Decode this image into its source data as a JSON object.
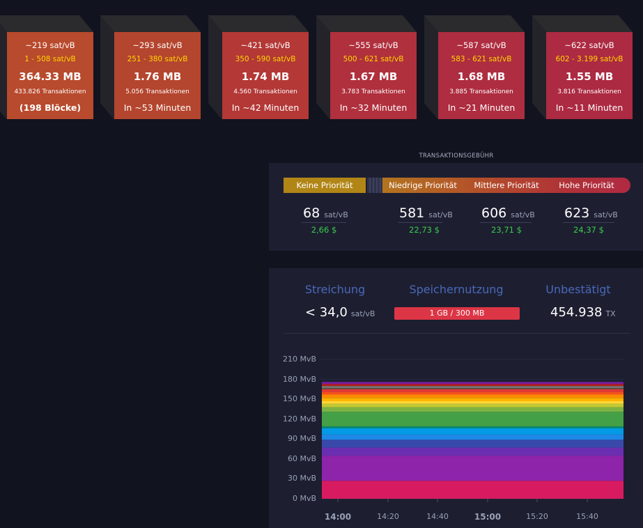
{
  "blocks": [
    {
      "fee": "~219 sat/vB",
      "range": "1 - 508 sat/vB",
      "size": "364.33 MB",
      "tx": "433.826 Transaktionen",
      "time": "(198 Blöcke)",
      "time_bold": true,
      "color": "#b84a2d"
    },
    {
      "fee": "~293 sat/vB",
      "range": "251 - 380 sat/vB",
      "size": "1.76 MB",
      "tx": "5.056 Transaktionen",
      "time": "In ~53 Minuten",
      "time_bold": false,
      "color": "#b4452e"
    },
    {
      "fee": "~421 sat/vB",
      "range": "350 - 590 sat/vB",
      "size": "1.74 MB",
      "tx": "4.560 Transaktionen",
      "time": "In ~42 Minuten",
      "time_bold": false,
      "color": "#b33836"
    },
    {
      "fee": "~555 sat/vB",
      "range": "500 - 621 sat/vB",
      "size": "1.67 MB",
      "tx": "3.783 Transaktionen",
      "time": "In ~32 Minuten",
      "time_bold": false,
      "color": "#b0303d"
    },
    {
      "fee": "~587 sat/vB",
      "range": "583 - 621 sat/vB",
      "size": "1.68 MB",
      "tx": "3.885 Transaktionen",
      "time": "In ~21 Minuten",
      "time_bold": false,
      "color": "#ae2d40"
    },
    {
      "fee": "~622 sat/vB",
      "range": "602 - 3.199 sat/vB",
      "size": "1.55 MB",
      "tx": "3.816 Transaktionen",
      "time": "In ~11 Minuten",
      "time_bold": false,
      "color": "#ac2a42"
    }
  ],
  "fees": {
    "title": "TRANSAKTIONSGEBÜHR",
    "labels": {
      "none": "Keine Priorität",
      "low": "Niedrige Priorität",
      "medium": "Mittlere Priorität",
      "high": "Hohe Priorität"
    },
    "unit": "sat/vB",
    "values": {
      "none": "68",
      "low": "581",
      "medium": "606",
      "high": "623"
    },
    "usd": {
      "none": "2,66 $",
      "low": "22,73 $",
      "medium": "23,71 $",
      "high": "24,37 $"
    }
  },
  "stats": {
    "purging": {
      "title": "Streichung",
      "value": "< 34,0",
      "unit": "sat/vB"
    },
    "memory": {
      "title": "Speichernutzung",
      "value": "1 GB / 300 MB"
    },
    "unconfirmed": {
      "title": "Unbestätigt",
      "value": "454.938",
      "unit": "TX"
    }
  },
  "chart_data": {
    "type": "area",
    "y_unit": "MvB",
    "yticks": [
      "210 MvB",
      "180 MvB",
      "150 MvB",
      "120 MvB",
      "90 MvB",
      "60 MvB",
      "30 MvB",
      "0 MvB"
    ],
    "ylim": [
      0,
      210
    ],
    "xticks": [
      {
        "label": "14:00",
        "major": true
      },
      {
        "label": "14:20",
        "major": false
      },
      {
        "label": "14:40",
        "major": false
      },
      {
        "label": "15:00",
        "major": true
      },
      {
        "label": "15:20",
        "major": false
      },
      {
        "label": "15:40",
        "major": false
      }
    ],
    "series": [
      {
        "color": "#d81b60",
        "values": [
          27,
          27
        ]
      },
      {
        "color": "#8e24aa",
        "values": [
          38,
          38
        ]
      },
      {
        "color": "#6a2fb0",
        "values": [
          12,
          12
        ]
      },
      {
        "color": "#3949ab",
        "values": [
          12,
          12
        ]
      },
      {
        "color": "#1e88e5",
        "values": [
          8,
          8
        ]
      },
      {
        "color": "#039be5",
        "values": [
          9,
          9
        ]
      },
      {
        "color": "#00897b",
        "values": [
          3,
          3
        ]
      },
      {
        "color": "#43a047",
        "values": [
          22,
          22
        ]
      },
      {
        "color": "#7cb342",
        "values": [
          7,
          7
        ]
      },
      {
        "color": "#c0ca33",
        "values": [
          5,
          5
        ]
      },
      {
        "color": "#fdd835",
        "values": [
          4,
          4
        ]
      },
      {
        "color": "#ffb300",
        "values": [
          5,
          5
        ]
      },
      {
        "color": "#fb8c00",
        "values": [
          5,
          5
        ]
      },
      {
        "color": "#f4511e",
        "values": [
          4,
          4
        ]
      },
      {
        "color": "#e53935",
        "values": [
          4,
          4
        ]
      },
      {
        "color": "#6d4c41",
        "values": [
          2,
          2
        ]
      },
      {
        "color": "#757575",
        "values": [
          3,
          3
        ]
      },
      {
        "color": "#b71c1c",
        "values": [
          3,
          3
        ]
      },
      {
        "color": "#7b1fa2",
        "values": [
          3,
          3
        ]
      }
    ]
  }
}
